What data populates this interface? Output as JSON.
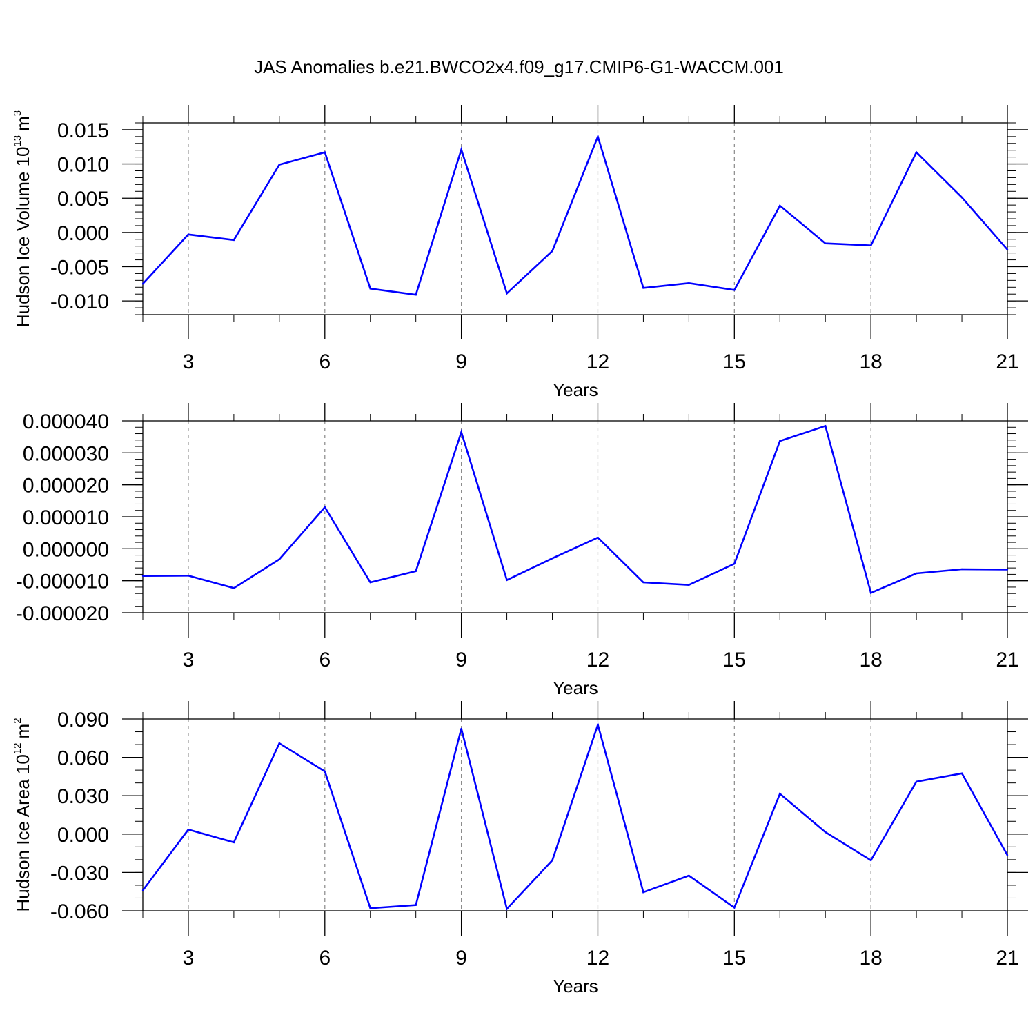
{
  "figure": {
    "title": "JAS Anomalies b.e21.BWCO2x4.f09_g17.CMIP6-G1-WACCM.001"
  },
  "colors": {
    "series": "#0000ff",
    "axis": "#000000",
    "grid": "#888888"
  },
  "chart_data": [
    {
      "type": "line",
      "ylabel": "Hudson Ice Volume 10",
      "ylabel_exp": "13",
      "ylabel_unit": "m",
      "ylabel_unit_exp": "3",
      "xlabel": "Years",
      "xlim": [
        2,
        21
      ],
      "ylim": [
        -0.012,
        0.016
      ],
      "x_ticks": [
        3,
        6,
        9,
        12,
        15,
        18,
        21
      ],
      "x_tick_labels": [
        "3",
        "6",
        "9",
        "12",
        "15",
        "18",
        "21"
      ],
      "y_ticks": [
        -0.01,
        -0.005,
        0.0,
        0.005,
        0.01,
        0.015
      ],
      "y_tick_labels": [
        "-0.010",
        "-0.005",
        "0.000",
        "0.005",
        "0.010",
        "0.015"
      ],
      "y_minor_step": 0.001,
      "grid": "vertical dashed at major x ticks",
      "series": [
        {
          "x": [
            2,
            3,
            4,
            5,
            6,
            7,
            8,
            9,
            10,
            11,
            12,
            13,
            14,
            15,
            16,
            17,
            18,
            19,
            20,
            21
          ],
          "y": [
            -0.0075,
            -0.0003,
            -0.0011,
            0.0099,
            0.0117,
            -0.0082,
            -0.0091,
            0.0121,
            -0.0089,
            -0.0027,
            0.014,
            -0.0081,
            -0.0074,
            -0.0084,
            0.0039,
            -0.0016,
            -0.0019,
            0.0117,
            0.0051,
            -0.0025
          ]
        }
      ]
    },
    {
      "type": "line",
      "ylabel": "",
      "xlabel": "Years",
      "xlim": [
        2,
        21
      ],
      "ylim": [
        -2e-05,
        4e-05
      ],
      "x_ticks": [
        3,
        6,
        9,
        12,
        15,
        18,
        21
      ],
      "x_tick_labels": [
        "3",
        "6",
        "9",
        "12",
        "15",
        "18",
        "21"
      ],
      "y_ticks": [
        -2e-05,
        -1e-05,
        0.0,
        1e-05,
        2e-05,
        3e-05,
        4e-05
      ],
      "y_tick_labels": [
        "-0.000020",
        "-0.000010",
        "0.000000",
        "0.000010",
        "0.000020",
        "0.000030",
        "0.000040"
      ],
      "y_minor_step": 2e-06,
      "grid": "vertical dashed at major x ticks",
      "series": [
        {
          "x": [
            2,
            3,
            4,
            5,
            6,
            7,
            8,
            9,
            10,
            11,
            12,
            13,
            14,
            15,
            16,
            17,
            18,
            19,
            20,
            21
          ],
          "y": [
            -8.5e-06,
            -8.4e-06,
            -1.23e-05,
            -3.3e-06,
            1.3e-05,
            -1.05e-05,
            -7e-06,
            3.65e-05,
            -9.8e-06,
            -3e-06,
            3.5e-06,
            -1.05e-05,
            -1.13e-05,
            -4.7e-06,
            3.37e-05,
            3.84e-05,
            -1.38e-05,
            -7.7e-06,
            -6.4e-06,
            -6.5e-06
          ]
        }
      ]
    },
    {
      "type": "line",
      "ylabel": "Hudson Ice Area 10",
      "ylabel_exp": "12",
      "ylabel_unit": "m",
      "ylabel_unit_exp": "2",
      "xlabel": "Years",
      "xlim": [
        2,
        21
      ],
      "ylim": [
        -0.06,
        0.09
      ],
      "x_ticks": [
        3,
        6,
        9,
        12,
        15,
        18,
        21
      ],
      "x_tick_labels": [
        "3",
        "6",
        "9",
        "12",
        "15",
        "18",
        "21"
      ],
      "y_ticks": [
        -0.06,
        -0.03,
        0.0,
        0.03,
        0.06,
        0.09
      ],
      "y_tick_labels": [
        "-0.060",
        "-0.030",
        "0.000",
        "0.030",
        "0.060",
        "0.090"
      ],
      "y_minor_step": 0.01,
      "grid": "vertical dashed at major x ticks",
      "series": [
        {
          "x": [
            2,
            3,
            4,
            5,
            6,
            7,
            8,
            9,
            10,
            11,
            12,
            13,
            14,
            15,
            16,
            17,
            18,
            19,
            20,
            21
          ],
          "y": [
            -0.044,
            0.0035,
            -0.0065,
            0.071,
            0.049,
            -0.058,
            -0.0555,
            0.0825,
            -0.0585,
            -0.0205,
            0.0855,
            -0.0455,
            -0.0325,
            -0.0575,
            0.0315,
            0.0015,
            -0.0205,
            0.041,
            0.0475,
            -0.0165
          ]
        }
      ]
    }
  ]
}
